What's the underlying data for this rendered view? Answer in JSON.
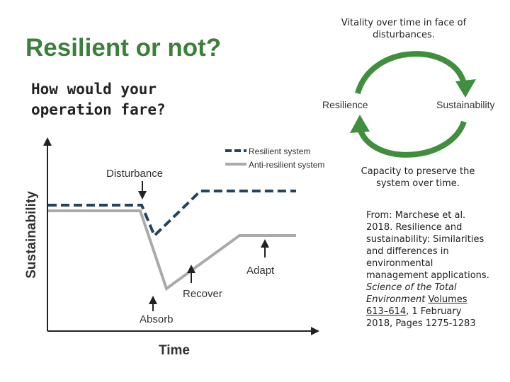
{
  "title": "Resilient or not?",
  "subtitle": "How would your operation fare?",
  "cycle": {
    "caption": "Vitality over time in face of disturbances.",
    "left": "Resilience",
    "right": "Sustainability",
    "bottom": "Capacity to preserve the system over time."
  },
  "figure": {
    "legend": [
      "Resilient system",
      "Anti-resilient system"
    ],
    "y_label": "Sustainability",
    "x_label": "Time",
    "annotations": [
      "Disturbance",
      "Absorb",
      "Recover",
      "Adapt"
    ]
  },
  "citation": {
    "text": "From: Marchese et al. 2018. Resilience and sustainability: Similarities and differences in environmental management applications.",
    "journal": "Science of the Total Environment",
    "link": "Volumes 613–614",
    "rest": ", 1 February 2018, Pages 1275-1283"
  }
}
